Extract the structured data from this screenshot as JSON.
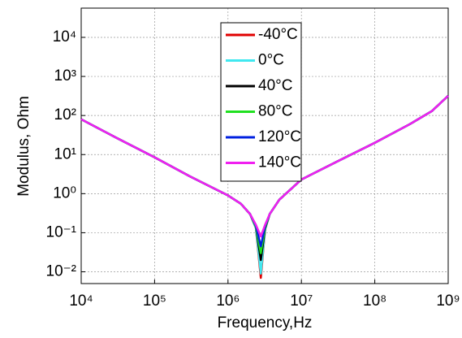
{
  "chart_data": {
    "type": "line",
    "x_label": "Frequency,Hz",
    "y_label": "Modulus, Ohm",
    "xscale": "log",
    "yscale": "log",
    "grid": true,
    "legend": "top",
    "xlim": [
      10000,
      1000000000
    ],
    "ylim": [
      0.005,
      56000
    ],
    "xticks": [
      {
        "value": 10000,
        "label": "10⁴"
      },
      {
        "value": 100000,
        "label": "10⁵"
      },
      {
        "value": 1000000,
        "label": "10⁶"
      },
      {
        "value": 10000000,
        "label": "10⁷"
      },
      {
        "value": 100000000,
        "label": "10⁸"
      },
      {
        "value": 1000000000,
        "label": "10⁹"
      }
    ],
    "yticks": [
      {
        "value": 0.01,
        "label": "10⁻²"
      },
      {
        "value": 0.1,
        "label": "10⁻¹"
      },
      {
        "value": 1,
        "label": "10⁰"
      },
      {
        "value": 10,
        "label": "10¹"
      },
      {
        "value": 100,
        "label": "10²"
      },
      {
        "value": 1000,
        "label": "10³"
      },
      {
        "value": 10000,
        "label": "10⁴"
      }
    ],
    "x": [
      10000,
      30000,
      100000,
      300000,
      1000000,
      1500000,
      2000000,
      2400000,
      2800000,
      3200000,
      3700000,
      5000000,
      10000000,
      30000000,
      100000000,
      300000000,
      600000000,
      1000000000
    ],
    "series": [
      {
        "name": "-40°C",
        "color": "#e00000",
        "values": [
          80,
          27,
          8.5,
          2.8,
          0.9,
          0.55,
          0.3,
          0.13,
          0.007,
          0.12,
          0.3,
          0.7,
          2.3,
          6.5,
          20,
          60,
          130,
          320
        ]
      },
      {
        "name": "0°C",
        "color": "#40e8f0",
        "values": [
          80,
          27,
          8.5,
          2.8,
          0.9,
          0.55,
          0.3,
          0.13,
          0.009,
          0.12,
          0.3,
          0.7,
          2.3,
          6.5,
          20,
          60,
          130,
          320
        ]
      },
      {
        "name": "40°C",
        "color": "#000000",
        "values": [
          80,
          27,
          8.5,
          2.8,
          0.9,
          0.55,
          0.3,
          0.14,
          0.02,
          0.13,
          0.3,
          0.7,
          2.3,
          6.5,
          20,
          60,
          130,
          320
        ]
      },
      {
        "name": "80°C",
        "color": "#20e020",
        "values": [
          80,
          27,
          8.5,
          2.8,
          0.9,
          0.55,
          0.3,
          0.14,
          0.03,
          0.14,
          0.3,
          0.7,
          2.3,
          6.5,
          20,
          60,
          130,
          320
        ]
      },
      {
        "name": "120°C",
        "color": "#0020e0",
        "values": [
          80,
          27,
          8.5,
          2.8,
          0.9,
          0.55,
          0.3,
          0.15,
          0.045,
          0.15,
          0.3,
          0.7,
          2.3,
          6.5,
          20,
          60,
          130,
          320
        ]
      },
      {
        "name": "140°C",
        "color": "#f020f0",
        "values": [
          80,
          27,
          8.5,
          2.8,
          0.9,
          0.55,
          0.3,
          0.16,
          0.08,
          0.16,
          0.3,
          0.7,
          2.3,
          6.5,
          20,
          60,
          130,
          320
        ]
      }
    ]
  }
}
